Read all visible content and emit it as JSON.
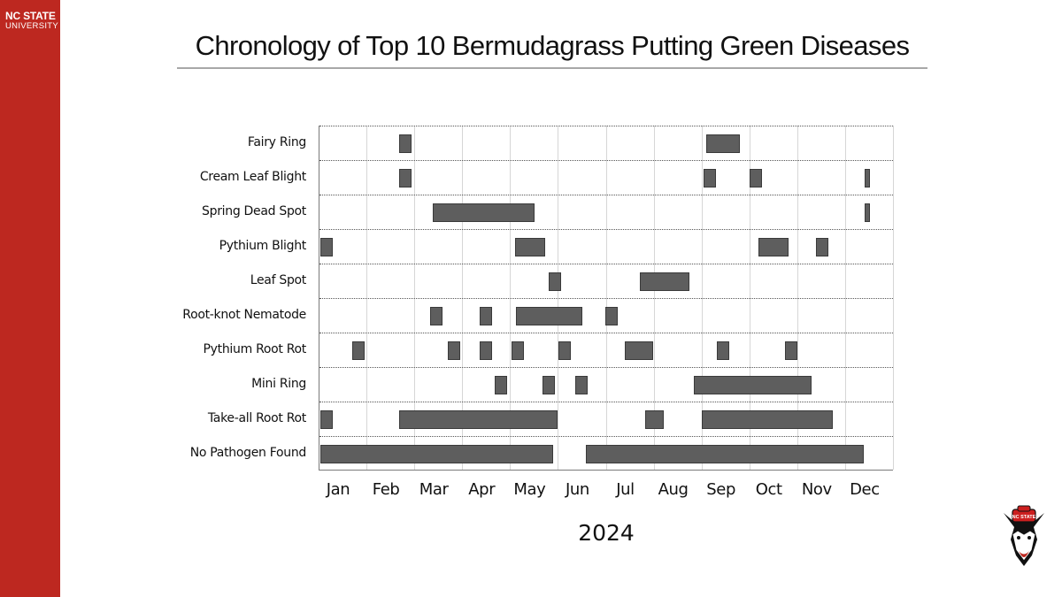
{
  "branding": {
    "line1": "NC STATE",
    "line2": "UNIVERSITY",
    "band_color": "#bd2820",
    "mascot_icon": "wolf-head-logo-icon"
  },
  "header": {
    "title": "Chronology of Top 10 Bermudagrass Putting Green Diseases"
  },
  "chart_data": {
    "type": "gantt",
    "title": "Chronology of Top 10 Bermudagrass Putting Green Diseases",
    "xlabel": "2024",
    "ylabel": "",
    "x_unit": "months from Jan 1 (0 = start of Jan, 12 = end of Dec)",
    "xlim": [
      0,
      12
    ],
    "grid": {
      "vertical": true,
      "horizontal_dotted": true
    },
    "legend": null,
    "bar_color": "#5e5e5e",
    "categories_x": [
      "Jan",
      "Feb",
      "Mar",
      "Apr",
      "May",
      "Jun",
      "Jul",
      "Aug",
      "Sep",
      "Oct",
      "Nov",
      "Dec"
    ],
    "series": [
      {
        "name": "Fairy Ring",
        "segments": [
          [
            1.66,
            1.92
          ],
          [
            8.08,
            8.78
          ]
        ]
      },
      {
        "name": "Cream Leaf Blight",
        "segments": [
          [
            1.66,
            1.92
          ],
          [
            8.03,
            8.28
          ],
          [
            8.99,
            9.25
          ],
          [
            11.39,
            11.5
          ]
        ]
      },
      {
        "name": "Spring Dead Spot",
        "segments": [
          [
            2.37,
            4.49
          ],
          [
            11.39,
            11.5
          ]
        ]
      },
      {
        "name": "Pythium Blight",
        "segments": [
          [
            0.02,
            0.28
          ],
          [
            4.09,
            4.72
          ],
          [
            9.17,
            9.8
          ],
          [
            10.37,
            10.63
          ]
        ]
      },
      {
        "name": "Leaf Spot",
        "segments": [
          [
            4.79,
            5.05
          ],
          [
            6.69,
            7.73
          ]
        ]
      },
      {
        "name": "Root-knot Nematode",
        "segments": [
          [
            2.31,
            2.57
          ],
          [
            3.35,
            3.61
          ],
          [
            4.1,
            5.49
          ],
          [
            5.97,
            6.23
          ]
        ]
      },
      {
        "name": "Pythium Root Rot",
        "segments": [
          [
            0.68,
            0.94
          ],
          [
            2.68,
            2.94
          ],
          [
            3.35,
            3.61
          ],
          [
            4.01,
            4.27
          ],
          [
            4.99,
            5.25
          ],
          [
            6.38,
            6.97
          ],
          [
            8.3,
            8.56
          ],
          [
            9.73,
            9.99
          ]
        ]
      },
      {
        "name": "Mini Ring",
        "segments": [
          [
            3.66,
            3.92
          ],
          [
            4.66,
            4.92
          ],
          [
            5.34,
            5.6
          ],
          [
            7.82,
            10.28
          ]
        ]
      },
      {
        "name": "Take-all Root Rot",
        "segments": [
          [
            0.02,
            0.28
          ],
          [
            1.66,
            4.97
          ],
          [
            6.8,
            7.19
          ],
          [
            7.99,
            10.72
          ]
        ]
      },
      {
        "name": "No Pathogen Found",
        "segments": [
          [
            0.02,
            4.88
          ],
          [
            5.57,
            11.37
          ]
        ]
      }
    ]
  }
}
